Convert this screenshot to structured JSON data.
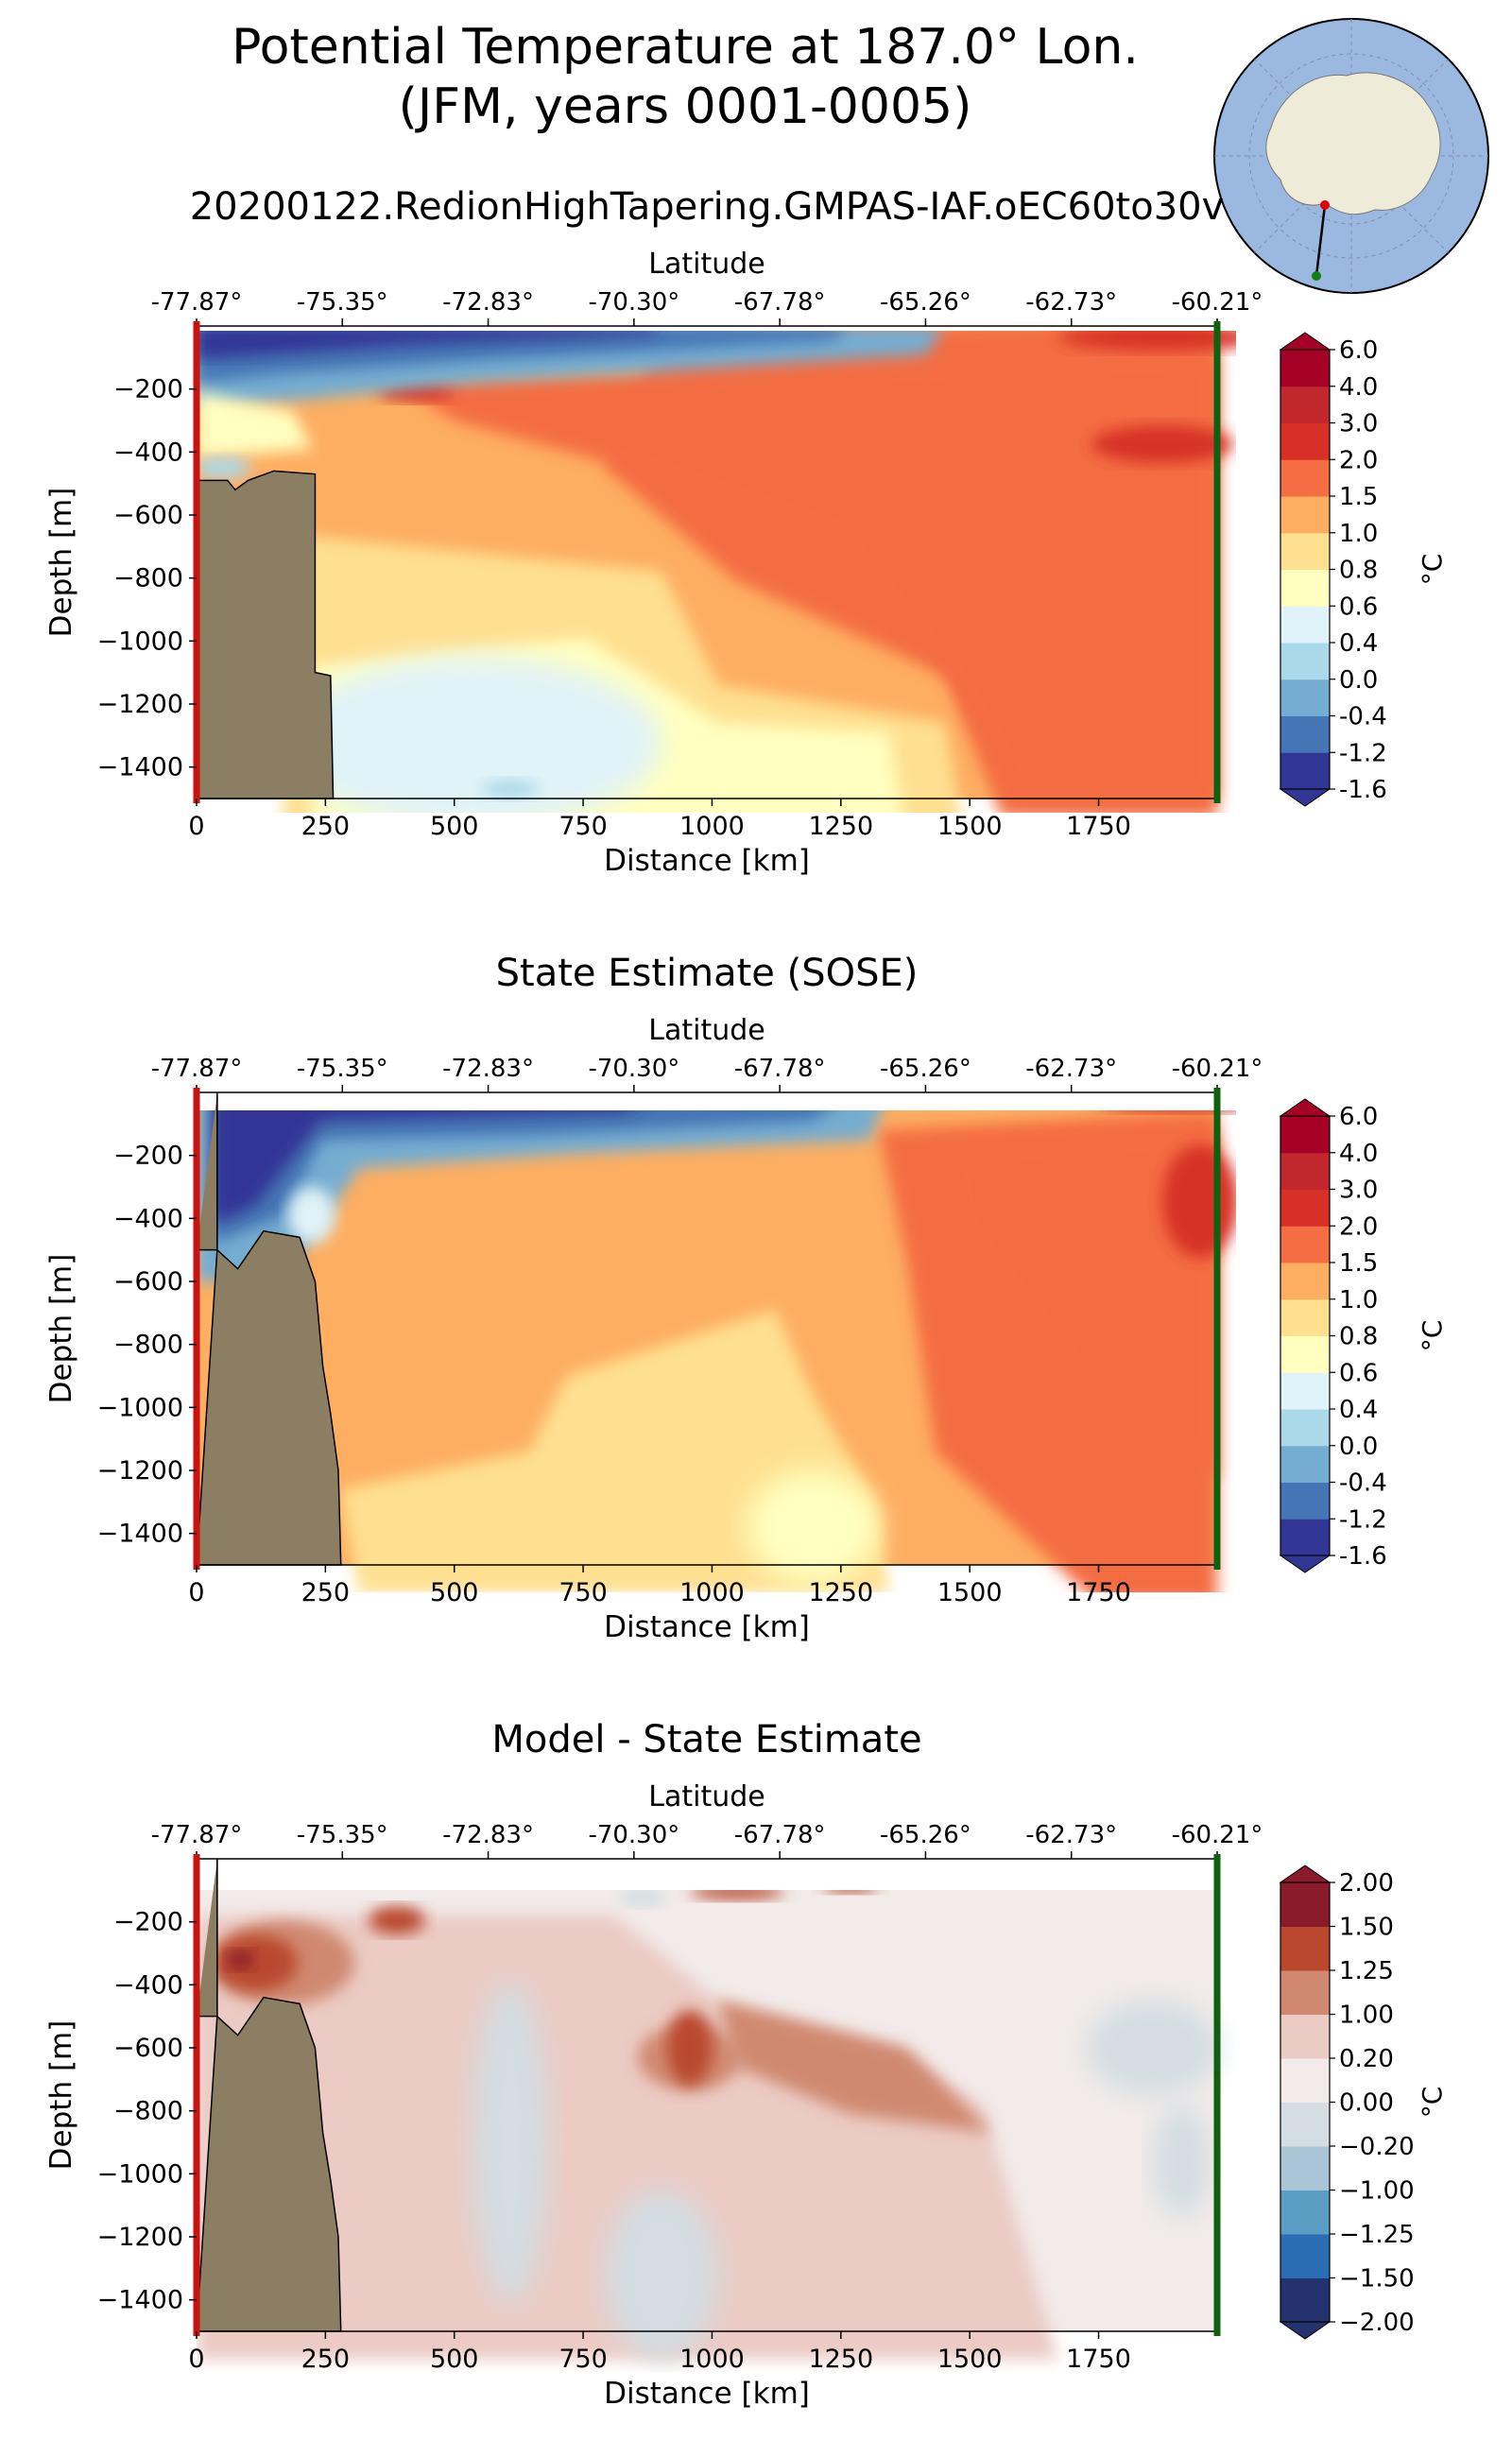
{
  "figure": {
    "title_line1": "Potential Temperature at 187.0° Lon.",
    "title_line2": "(JFM, years 0001-0005)",
    "inset_map": "antarctica-transect-map"
  },
  "colors": {
    "bathymetry": "#8c7e62",
    "start_line": "#cc1111",
    "end_line": "#106010",
    "transect_start_dot": "#e00000",
    "transect_end_dot": "#108010"
  },
  "chart_data": [
    {
      "type": "contourf",
      "title": "20200122.RedionHighTapering.GMPAS-IAF.oEC60to30v",
      "xlabel": "Distance [km]",
      "ylabel": "Depth [m]",
      "top_axis_label": "Latitude",
      "top_ticks": [
        "-77.87°",
        "-75.35°",
        "-72.83°",
        "-70.30°",
        "-67.78°",
        "-65.26°",
        "-62.73°",
        "-60.21°"
      ],
      "x_ticks": [
        0,
        250,
        500,
        750,
        1000,
        1250,
        1500,
        1750
      ],
      "y_ticks": [
        -200,
        -400,
        -600,
        -800,
        -1000,
        -1200,
        -1400
      ],
      "xlim": [
        0,
        1980
      ],
      "ylim": [
        -1500,
        0
      ],
      "colorbar": {
        "unit": "°C",
        "levels": [
          "-1.6",
          "-1.2",
          "-0.4",
          "0.0",
          "0.4",
          "0.6",
          "0.8",
          "1.0",
          "1.5",
          "2.0",
          "3.0",
          "4.0",
          "6.0"
        ],
        "colors": [
          "#313695",
          "#4575b4",
          "#74add1",
          "#abd9e9",
          "#e0f3f8",
          "#ffffbf",
          "#fee090",
          "#fdae61",
          "#f46d43",
          "#d73027",
          "#c1272d",
          "#a50026"
        ]
      }
    },
    {
      "type": "contourf",
      "title": "State Estimate (SOSE)",
      "xlabel": "Distance [km]",
      "ylabel": "Depth [m]",
      "top_axis_label": "Latitude",
      "top_ticks": [
        "-77.87°",
        "-75.35°",
        "-72.83°",
        "-70.30°",
        "-67.78°",
        "-65.26°",
        "-62.73°",
        "-60.21°"
      ],
      "x_ticks": [
        0,
        250,
        500,
        750,
        1000,
        1250,
        1500,
        1750
      ],
      "y_ticks": [
        -200,
        -400,
        -600,
        -800,
        -1000,
        -1200,
        -1400
      ],
      "xlim": [
        0,
        1980
      ],
      "ylim": [
        -1500,
        0
      ],
      "colorbar": {
        "unit": "°C",
        "levels": [
          "-1.6",
          "-1.2",
          "-0.4",
          "0.0",
          "0.4",
          "0.6",
          "0.8",
          "1.0",
          "1.5",
          "2.0",
          "3.0",
          "4.0",
          "6.0"
        ],
        "colors": [
          "#313695",
          "#4575b4",
          "#74add1",
          "#abd9e9",
          "#e0f3f8",
          "#ffffbf",
          "#fee090",
          "#fdae61",
          "#f46d43",
          "#d73027",
          "#c1272d",
          "#a50026"
        ]
      }
    },
    {
      "type": "contourf",
      "title": "Model - State Estimate",
      "xlabel": "Distance [km]",
      "ylabel": "Depth [m]",
      "top_axis_label": "Latitude",
      "top_ticks": [
        "-77.87°",
        "-75.35°",
        "-72.83°",
        "-70.30°",
        "-67.78°",
        "-65.26°",
        "-62.73°",
        "-60.21°"
      ],
      "x_ticks": [
        0,
        250,
        500,
        750,
        1000,
        1250,
        1500,
        1750
      ],
      "y_ticks": [
        -200,
        -400,
        -600,
        -800,
        -1000,
        -1200,
        -1400
      ],
      "xlim": [
        0,
        1980
      ],
      "ylim": [
        -1500,
        0
      ],
      "colorbar": {
        "unit": "°C",
        "levels": [
          "−2.00",
          "−1.50",
          "−1.25",
          "−1.00",
          "−0.20",
          "0.00",
          "0.20",
          "1.00",
          "1.25",
          "1.50",
          "2.00"
        ],
        "colors": [
          "#24326e",
          "#2a6db3",
          "#5a9ec4",
          "#aac6d6",
          "#d3dde2",
          "#f2ebea",
          "#ebcbc4",
          "#d08970",
          "#b9482f",
          "#8a1b2b"
        ]
      }
    }
  ]
}
